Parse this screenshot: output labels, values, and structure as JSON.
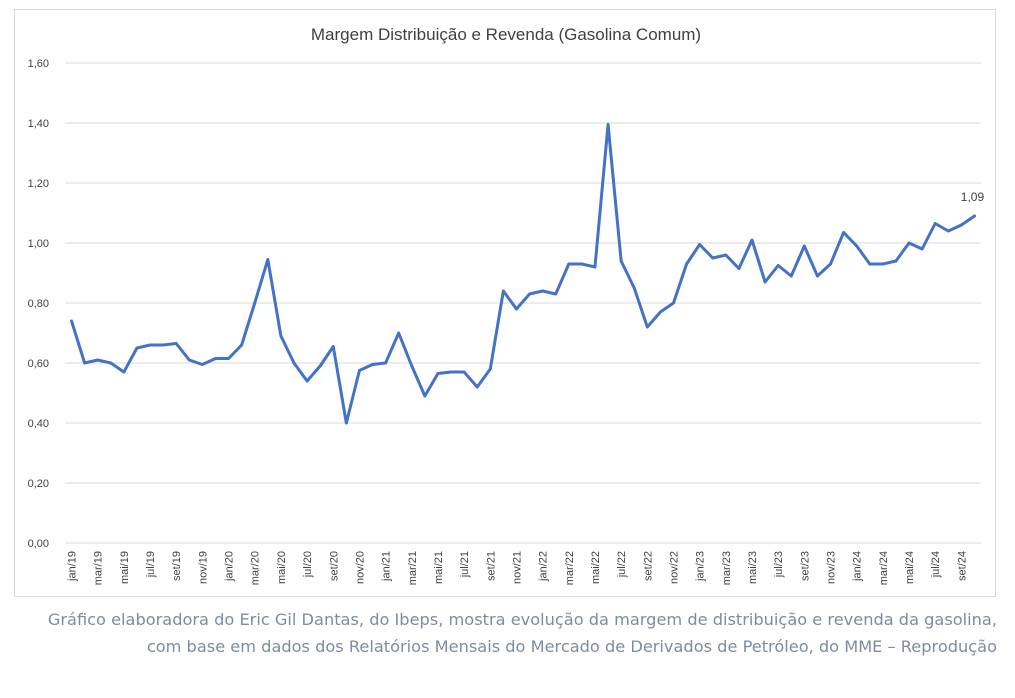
{
  "chart_data": {
    "type": "line",
    "title": "Margem Distribuição e Revenda (Gasolina Comum)",
    "xlabel": "",
    "ylabel": "",
    "ylim": [
      0,
      1.6
    ],
    "yticks": [
      "0,00",
      "0,20",
      "0,40",
      "0,60",
      "0,80",
      "1,00",
      "1,20",
      "1,40",
      "1,60"
    ],
    "grid": true,
    "legend": "none",
    "line_color": "#4472c4",
    "x": [
      "jan/19",
      "fev/19",
      "mar/19",
      "abr/19",
      "mai/19",
      "jun/19",
      "jul/19",
      "ago/19",
      "set/19",
      "out/19",
      "nov/19",
      "dez/19",
      "jan/20",
      "fev/20",
      "mar/20",
      "abr/20",
      "mai/20",
      "jun/20",
      "jul/20",
      "ago/20",
      "set/20",
      "out/20",
      "nov/20",
      "dez/20",
      "jan/21",
      "fev/21",
      "mar/21",
      "abr/21",
      "mai/21",
      "jun/21",
      "jul/21",
      "ago/21",
      "set/21",
      "out/21",
      "nov/21",
      "dez/21",
      "jan/22",
      "fev/22",
      "mar/22",
      "abr/22",
      "mai/22",
      "jun/22",
      "jul/22",
      "ago/22",
      "set/22",
      "out/22",
      "nov/22",
      "dez/22",
      "jan/23",
      "fev/23",
      "mar/23",
      "abr/23",
      "mai/23",
      "jun/23",
      "jul/23",
      "ago/23",
      "set/23",
      "out/23",
      "nov/23",
      "dez/23",
      "jan/24",
      "fev/24",
      "mar/24",
      "abr/24",
      "mai/24",
      "jun/24",
      "jul/24",
      "ago/24",
      "set/24",
      "out/24"
    ],
    "x_tick_labels": [
      "jan/19",
      "mar/19",
      "mai/19",
      "jul/19",
      "set/19",
      "nov/19",
      "jan/20",
      "mar/20",
      "mai/20",
      "jul/20",
      "set/20",
      "nov/20",
      "jan/21",
      "mar/21",
      "mai/21",
      "jul/21",
      "set/21",
      "nov/21",
      "jan/22",
      "mar/22",
      "mai/22",
      "jul/22",
      "set/22",
      "nov/22",
      "jan/23",
      "mar/23",
      "mai/23",
      "jul/23",
      "set/23",
      "nov/23",
      "jan/24",
      "mar/24",
      "mai/24",
      "jul/24",
      "set/24"
    ],
    "series": [
      {
        "values": [
          0.74,
          0.6,
          0.61,
          0.6,
          0.57,
          0.65,
          0.66,
          0.66,
          0.665,
          0.61,
          0.595,
          0.615,
          0.615,
          0.66,
          0.8,
          0.945,
          0.69,
          0.6,
          0.54,
          0.59,
          0.655,
          0.4,
          0.575,
          0.595,
          0.6,
          0.7,
          0.59,
          0.49,
          0.565,
          0.57,
          0.57,
          0.52,
          0.58,
          0.84,
          0.78,
          0.83,
          0.84,
          0.83,
          0.93,
          0.93,
          0.92,
          1.395,
          0.94,
          0.85,
          0.72,
          0.77,
          0.8,
          0.93,
          0.995,
          0.95,
          0.96,
          0.915,
          1.01,
          0.87,
          0.925,
          0.89,
          0.99,
          0.89,
          0.93,
          1.035,
          0.99,
          0.93,
          0.93,
          0.94,
          1.0,
          0.98,
          1.065,
          1.04,
          1.06,
          1.09
        ]
      }
    ],
    "annotations": [
      {
        "x": "out/24",
        "text": "1,09"
      }
    ]
  },
  "caption": "Gráfico elaboradora do Eric Gil Dantas, do Ibeps, mostra evolução da margem de distribuição e revenda da gasolina, com base em dados dos Relatórios Mensais do Mercado de Derivados de Petróleo, do MME – Reprodução"
}
